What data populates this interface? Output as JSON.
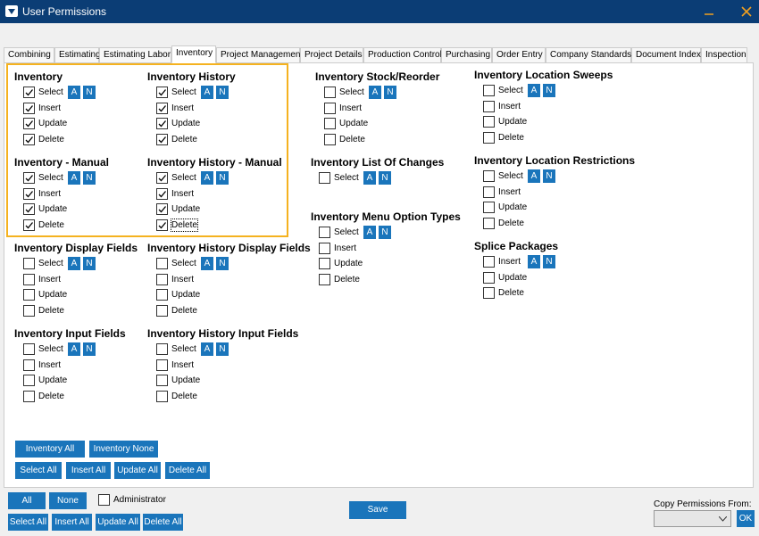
{
  "window": {
    "title": "User Permissions"
  },
  "tabs": [
    "Combining",
    "Estimating",
    "Estimating Labor",
    "Inventory",
    "Project Management",
    "Project Details",
    "Production Control",
    "Purchasing",
    "Order Entry",
    "Company Standards",
    "Document Index",
    "Inspection"
  ],
  "active_tab": "Inventory",
  "row_buttons": [
    "A",
    "N"
  ],
  "groups": [
    {
      "title": "Inventory",
      "items": [
        {
          "label": "Select",
          "checked": true
        },
        {
          "label": "Insert",
          "checked": true
        },
        {
          "label": "Update",
          "checked": true
        },
        {
          "label": "Delete",
          "checked": true
        }
      ]
    },
    {
      "title": "Inventory - Manual",
      "items": [
        {
          "label": "Select",
          "checked": true
        },
        {
          "label": "Insert",
          "checked": true
        },
        {
          "label": "Update",
          "checked": true
        },
        {
          "label": "Delete",
          "checked": true
        }
      ]
    },
    {
      "title": "Inventory Display Fields",
      "items": [
        {
          "label": "Select",
          "checked": false
        },
        {
          "label": "Insert",
          "checked": false
        },
        {
          "label": "Update",
          "checked": false
        },
        {
          "label": "Delete",
          "checked": false
        }
      ]
    },
    {
      "title": "Inventory Input Fields",
      "items": [
        {
          "label": "Select",
          "checked": false
        },
        {
          "label": "Insert",
          "checked": false
        },
        {
          "label": "Update",
          "checked": false
        },
        {
          "label": "Delete",
          "checked": false
        }
      ]
    },
    {
      "title": "Inventory History",
      "items": [
        {
          "label": "Select",
          "checked": true
        },
        {
          "label": "Insert",
          "checked": true
        },
        {
          "label": "Update",
          "checked": true
        },
        {
          "label": "Delete",
          "checked": true
        }
      ]
    },
    {
      "title": "Inventory History - Manual",
      "items": [
        {
          "label": "Select",
          "checked": true
        },
        {
          "label": "Insert",
          "checked": true
        },
        {
          "label": "Update",
          "checked": true
        },
        {
          "label": "Delete",
          "checked": true
        }
      ]
    },
    {
      "title": "Inventory History Display Fields",
      "items": [
        {
          "label": "Select",
          "checked": false
        },
        {
          "label": "Insert",
          "checked": false
        },
        {
          "label": "Update",
          "checked": false
        },
        {
          "label": "Delete",
          "checked": false
        }
      ]
    },
    {
      "title": "Inventory History Input Fields",
      "items": [
        {
          "label": "Select",
          "checked": false
        },
        {
          "label": "Insert",
          "checked": false
        },
        {
          "label": "Update",
          "checked": false
        },
        {
          "label": "Delete",
          "checked": false
        }
      ]
    },
    {
      "title": "Inventory Stock/Reorder",
      "items": [
        {
          "label": "Select",
          "checked": false
        },
        {
          "label": "Insert",
          "checked": false
        },
        {
          "label": "Update",
          "checked": false
        },
        {
          "label": "Delete",
          "checked": false
        }
      ]
    },
    {
      "title": "Inventory List Of Changes",
      "items": [
        {
          "label": "Select",
          "checked": false
        }
      ]
    },
    {
      "title": "Inventory Menu Option Types",
      "items": [
        {
          "label": "Select",
          "checked": false
        },
        {
          "label": "Insert",
          "checked": false
        },
        {
          "label": "Update",
          "checked": false
        },
        {
          "label": "Delete",
          "checked": false
        }
      ]
    },
    {
      "title": "Inventory Location Sweeps",
      "items": [
        {
          "label": "Select",
          "checked": false
        },
        {
          "label": "Insert",
          "checked": false
        },
        {
          "label": "Update",
          "checked": false
        },
        {
          "label": "Delete",
          "checked": false
        }
      ]
    },
    {
      "title": "Inventory Location Restrictions",
      "items": [
        {
          "label": "Select",
          "checked": false
        },
        {
          "label": "Insert",
          "checked": false
        },
        {
          "label": "Update",
          "checked": false
        },
        {
          "label": "Delete",
          "checked": false
        }
      ]
    },
    {
      "title": "Splice Packages",
      "items": [
        {
          "label": "Insert",
          "checked": false
        },
        {
          "label": "Update",
          "checked": false
        },
        {
          "label": "Delete",
          "checked": false
        }
      ]
    }
  ],
  "tab_buttons": [
    "Inventory All",
    "Inventory None",
    "Select All",
    "Insert All",
    "Update All",
    "Delete All"
  ],
  "footer": {
    "buttons": [
      "All",
      "None",
      "Select All",
      "Insert All",
      "Update All",
      "Delete All"
    ],
    "administrator": {
      "label": "Administrator",
      "checked": false
    },
    "save": "Save",
    "copy_label": "Copy Permissions From:",
    "ok": "OK"
  }
}
